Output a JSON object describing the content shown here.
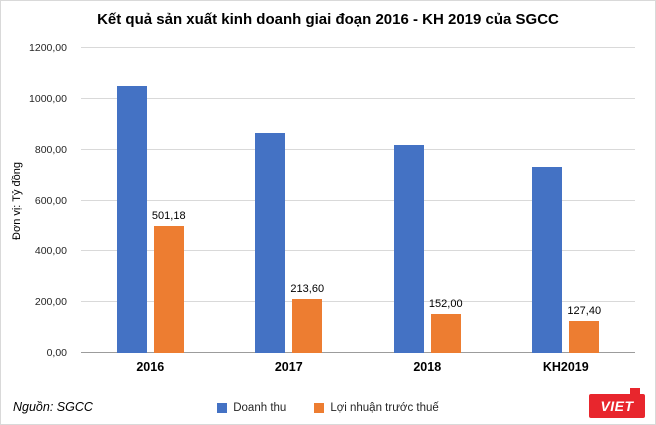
{
  "page": {
    "source": "Nguồn: SGCC",
    "logo_text": "VIET",
    "logo_color": "#e8262d"
  },
  "chart_data": {
    "type": "bar",
    "title": "Kết quả sản xuất kinh doanh giai đoạn 2016 - KH 2019 của SGCC",
    "ylabel": "Đơn vị: Tỷ đồng",
    "categories": [
      "2016",
      "2017",
      "2018",
      "KH2019"
    ],
    "series": [
      {
        "name": "Doanh thu",
        "color": "#4472C4",
        "values": [
          1050,
          865,
          820,
          730
        ]
      },
      {
        "name": "Lợi nhuận trước thuế",
        "color": "#ED7D31",
        "values": [
          501.18,
          213.6,
          152.0,
          127.4
        ],
        "data_labels": [
          "501,18",
          "213,60",
          "152,00",
          "127,40"
        ]
      }
    ],
    "ylim": [
      0,
      1200
    ],
    "ytick_step": 200,
    "ytick_labels": [
      "0,00",
      "200,00",
      "400,00",
      "600,00",
      "800,00",
      "1000,00",
      "1200,00"
    ],
    "grid": true,
    "legend_position": "bottom"
  }
}
